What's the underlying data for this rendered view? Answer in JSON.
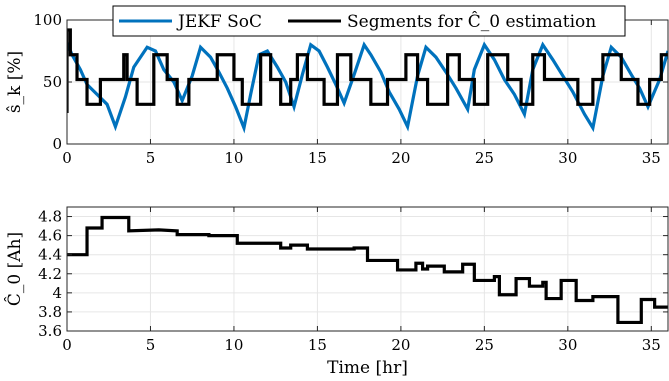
{
  "chart_data": [
    {
      "type": "line",
      "ylabel": "ŝ_k [%]",
      "xlabel": "",
      "xlim": [
        0,
        36
      ],
      "ylim": [
        0,
        100
      ],
      "x_ticks": [
        0,
        5,
        10,
        15,
        20,
        25,
        30,
        35
      ],
      "y_ticks": [
        0,
        50,
        100
      ],
      "grid": true,
      "legend_position": "top",
      "colors": {
        "soc": "#0072BD",
        "segments": "#000000"
      },
      "series": [
        {
          "name": "JEKF SoC",
          "x": [
            0,
            0.3,
            0.8,
            1.2,
            1.8,
            2.4,
            2.9,
            3.5,
            4.0,
            4.8,
            5.3,
            5.8,
            6.4,
            6.9,
            7.5,
            8.0,
            8.6,
            9.1,
            9.6,
            10.1,
            10.6,
            11.0,
            11.5,
            12.0,
            12.6,
            13.1,
            13.6,
            14.1,
            14.6,
            15.1,
            15.6,
            16.1,
            16.6,
            17.2,
            17.8,
            18.2,
            18.8,
            19.3,
            19.9,
            20.4,
            21.0,
            21.5,
            22.1,
            22.7,
            23.3,
            24.0,
            24.4,
            25.0,
            25.6,
            26.2,
            26.8,
            27.4,
            27.9,
            28.5,
            29.1,
            29.7,
            30.3,
            31.0,
            31.5,
            32.1,
            32.6,
            33.2,
            33.8,
            34.3,
            34.8,
            35.5,
            36
          ],
          "y": [
            82,
            72,
            60,
            48,
            40,
            32,
            14,
            38,
            62,
            78,
            75,
            60,
            50,
            35,
            55,
            78,
            70,
            58,
            45,
            30,
            13,
            40,
            72,
            75,
            62,
            50,
            30,
            56,
            80,
            75,
            62,
            48,
            33,
            56,
            80,
            72,
            58,
            42,
            28,
            14,
            55,
            78,
            70,
            58,
            45,
            28,
            60,
            80,
            68,
            52,
            40,
            24,
            60,
            80,
            68,
            55,
            42,
            24,
            13,
            55,
            78,
            70,
            56,
            45,
            30,
            52,
            75
          ]
        },
        {
          "name": "Segments for Ĉ_0 estimation",
          "x": [
            0,
            0,
            0.2,
            0.2,
            0.6,
            0.6,
            1.2,
            1.2,
            2.0,
            2.0,
            3.4,
            3.4,
            3.6,
            3.6,
            4.2,
            4.2,
            5.2,
            5.2,
            6.0,
            6.0,
            6.6,
            6.6,
            7.3,
            7.3,
            9.0,
            9.0,
            10.0,
            10.0,
            10.5,
            10.5,
            11.6,
            11.6,
            12.2,
            12.2,
            12.8,
            12.8,
            13.4,
            13.4,
            13.8,
            13.8,
            14.4,
            14.4,
            15.4,
            15.4,
            16.2,
            16.2,
            17.0,
            17.0,
            18.2,
            18.2,
            19.2,
            19.2,
            20.3,
            20.3,
            21.0,
            21.0,
            21.6,
            21.6,
            22.8,
            22.8,
            23.5,
            23.5,
            24.4,
            24.4,
            25.2,
            25.2,
            26.4,
            26.4,
            27.2,
            27.2,
            27.9,
            27.9,
            28.6,
            28.6,
            30.6,
            30.6,
            31.5,
            31.5,
            32.1,
            32.1,
            33.2,
            33.2,
            34.2,
            34.2,
            34.9,
            34.9,
            35.6,
            35.6,
            36
          ],
          "y": [
            25,
            92,
            92,
            72,
            72,
            52,
            52,
            32,
            32,
            52,
            52,
            72,
            72,
            52,
            52,
            32,
            32,
            72,
            72,
            52,
            52,
            32,
            32,
            52,
            52,
            72,
            72,
            52,
            52,
            32,
            32,
            72,
            72,
            52,
            52,
            32,
            32,
            52,
            52,
            72,
            72,
            52,
            52,
            32,
            32,
            72,
            72,
            52,
            52,
            32,
            32,
            52,
            52,
            72,
            72,
            52,
            52,
            32,
            32,
            72,
            72,
            52,
            52,
            32,
            32,
            72,
            72,
            52,
            52,
            32,
            32,
            72,
            72,
            52,
            52,
            32,
            32,
            52,
            52,
            72,
            72,
            52,
            52,
            32,
            32,
            52,
            52,
            72,
            72
          ]
        }
      ]
    },
    {
      "type": "line",
      "ylabel": "Ĉ_0 [Ah]",
      "xlabel": "Time [hr]",
      "xlim": [
        0,
        36
      ],
      "ylim": [
        3.6,
        4.9
      ],
      "x_ticks": [
        0,
        5,
        10,
        15,
        20,
        25,
        30,
        35
      ],
      "y_ticks": [
        3.6,
        3.8,
        4,
        4.2,
        4.4,
        4.6,
        4.8
      ],
      "grid": true,
      "colors": {
        "line": "#000000"
      },
      "series": [
        {
          "x": [
            0,
            1.2,
            1.2,
            2.1,
            2.1,
            3.4,
            3.4,
            3.7,
            3.7,
            5.5,
            5.5,
            6.6,
            6.6,
            8.5,
            8.5,
            9.1,
            9.1,
            10.2,
            10.2,
            11.0,
            11.0,
            12.8,
            12.8,
            13.4,
            13.4,
            14.4,
            14.4,
            14.7,
            14.7,
            17.2,
            17.2,
            18.0,
            18.0,
            19.3,
            19.3,
            19.8,
            19.8,
            20.9,
            20.9,
            21.3,
            21.3,
            21.6,
            21.6,
            22.6,
            22.6,
            23.7,
            23.7,
            24.4,
            24.4,
            25.6,
            25.6,
            25.9,
            25.9,
            26.9,
            26.9,
            27.7,
            27.7,
            28.5,
            28.5,
            28.7,
            28.7,
            29.6,
            29.6,
            30.5,
            30.5,
            31.5,
            31.5,
            32.3,
            32.3,
            33.0,
            33.0,
            34.4,
            34.4,
            35.2,
            35.2,
            35.7,
            35.7,
            36
          ],
          "y": [
            4.4,
            4.4,
            4.68,
            4.68,
            4.79,
            4.79,
            4.79,
            4.79,
            4.65,
            4.66,
            4.66,
            4.65,
            4.61,
            4.61,
            4.6,
            4.6,
            4.6,
            4.6,
            4.52,
            4.52,
            4.52,
            4.52,
            4.47,
            4.47,
            4.5,
            4.5,
            4.46,
            4.46,
            4.46,
            4.46,
            4.47,
            4.47,
            4.34,
            4.34,
            4.34,
            4.34,
            4.24,
            4.24,
            4.31,
            4.31,
            4.25,
            4.25,
            4.28,
            4.28,
            4.22,
            4.22,
            4.3,
            4.3,
            4.13,
            4.13,
            4.17,
            4.17,
            3.98,
            3.98,
            4.15,
            4.15,
            4.07,
            4.07,
            4.11,
            4.11,
            3.94,
            3.94,
            4.13,
            4.13,
            3.92,
            3.92,
            3.96,
            3.96,
            3.96,
            3.96,
            3.69,
            3.69,
            3.93,
            3.93,
            3.85,
            3.85,
            3.85,
            3.85
          ]
        }
      ]
    }
  ]
}
